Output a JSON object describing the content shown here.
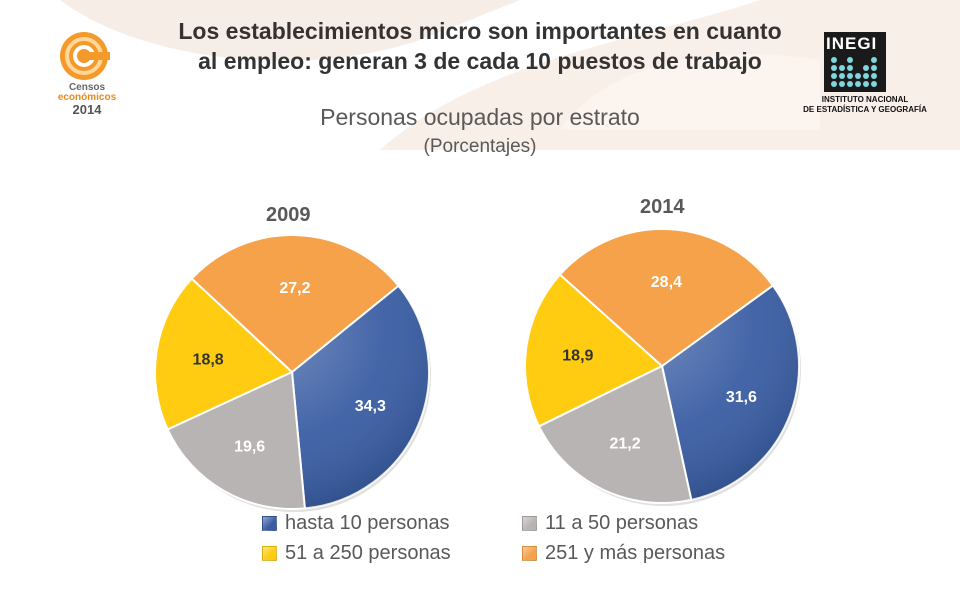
{
  "header": {
    "title_line1": "Los establecimientos micro son importantes en cuanto",
    "title_line2": "al empleo: generan 3 de cada 10 puestos de trabajo",
    "subtitle": "Personas ocupadas por estrato",
    "units": "(Porcentajes)"
  },
  "logos": {
    "censos_line1": "Censos",
    "censos_line2": "económicos",
    "censos_line3": "2014",
    "inegi_brand": "INEGI",
    "inegi_line1": "INSTITUTO NACIONAL",
    "inegi_line2": "DE ESTADÍSTICA Y GEOGRAFÍA"
  },
  "colors": {
    "series": [
      "#3a5da3",
      "#b8b4b3",
      "#ffcc11",
      "#f5a24a"
    ],
    "label_text": [
      "#ffffff",
      "#ffffff",
      "#333333",
      "#ffffff"
    ]
  },
  "chart_data": [
    {
      "type": "pie",
      "title": "2009",
      "categories": [
        "hasta 10 personas",
        "11 a 50 personas",
        "51 a 250 personas",
        "251 y más personas"
      ],
      "values": [
        34.3,
        19.6,
        18.8,
        27.2
      ],
      "value_labels": [
        "34,3",
        "19,6",
        "18,8",
        "27,2"
      ],
      "legend": "bottom"
    },
    {
      "type": "pie",
      "title": "2014",
      "categories": [
        "hasta 10 personas",
        "11 a 50 personas",
        "51 a 250 personas",
        "251 y más personas"
      ],
      "values": [
        31.6,
        21.2,
        18.9,
        28.4
      ],
      "value_labels": [
        "31,6",
        "21,2",
        "18,9",
        "28,4"
      ],
      "legend": "bottom"
    }
  ],
  "legend": {
    "items": [
      "hasta 10 personas",
      "11 a 50 personas",
      "51 a 250 personas",
      "251 y más personas"
    ]
  }
}
